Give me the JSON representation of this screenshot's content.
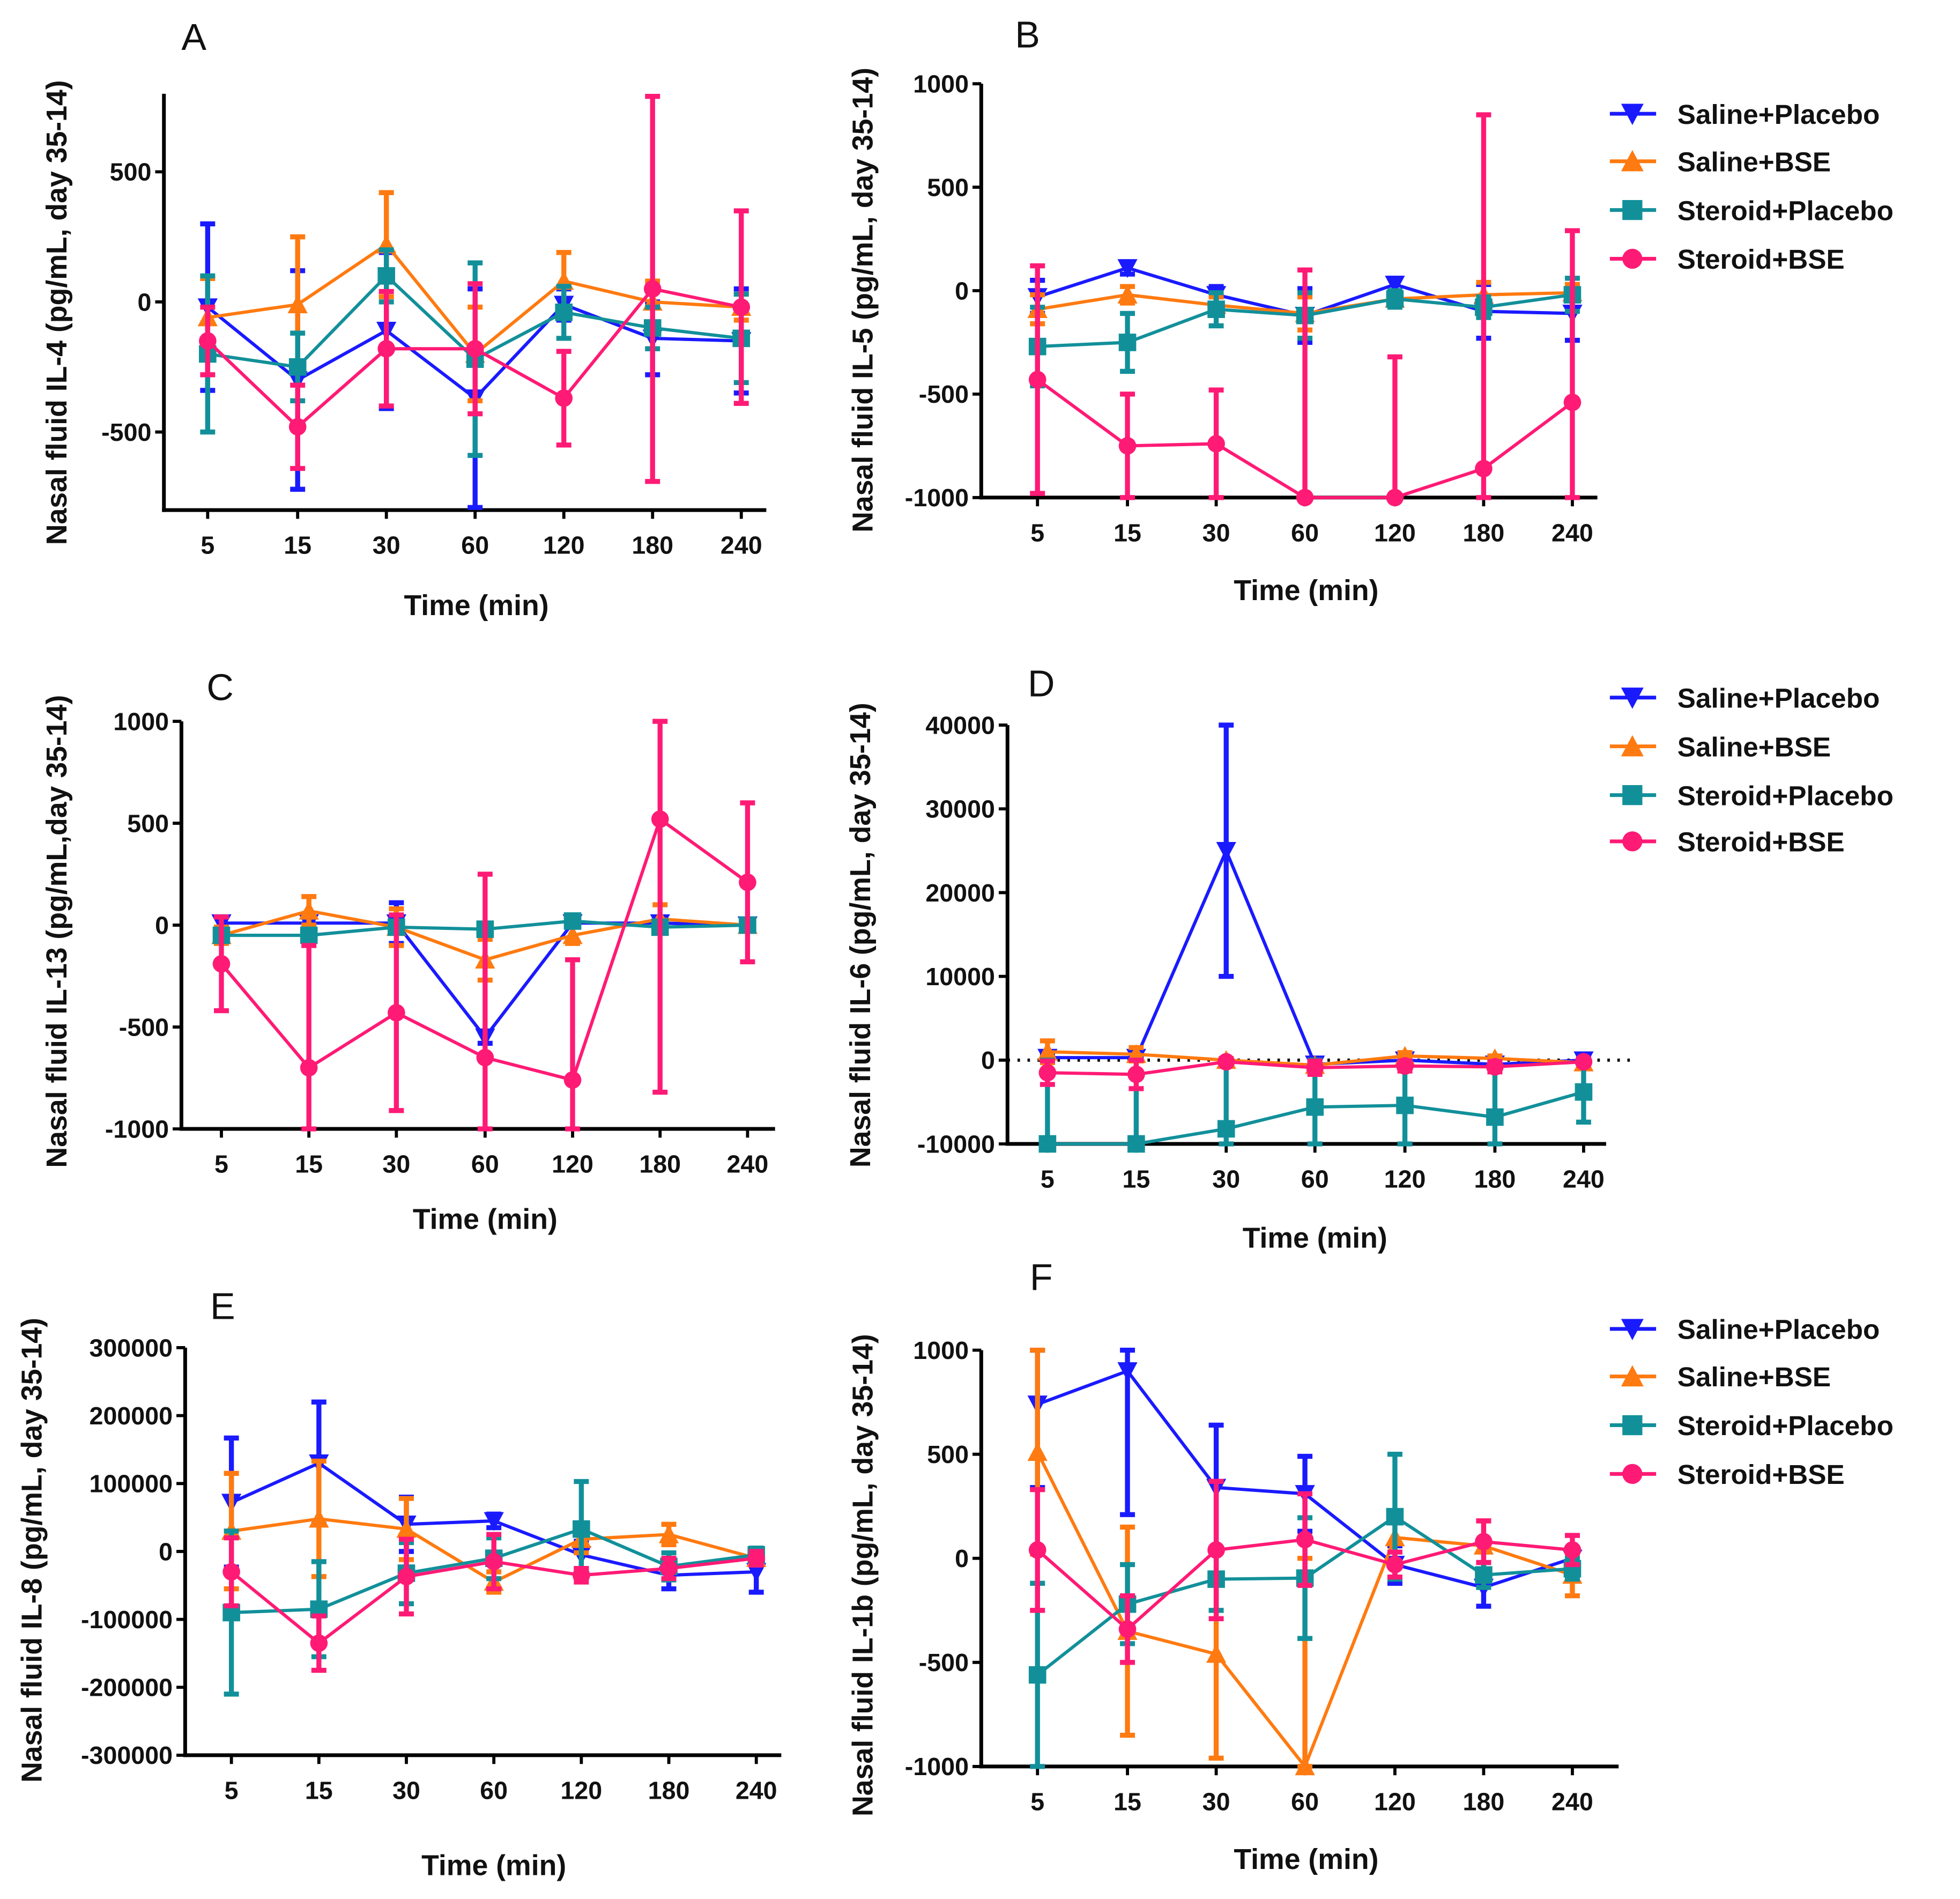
{
  "series_styles": [
    {
      "name": "Saline+Placebo",
      "color": "#1a1aff",
      "marker": "triangle-down"
    },
    {
      "name": "Saline+BSE",
      "color": "#ff7a10",
      "marker": "triangle-up"
    },
    {
      "name": "Steroid+Placebo",
      "color": "#12909a",
      "marker": "square"
    },
    {
      "name": "Steroid+BSE",
      "color": "#ff1a75",
      "marker": "circle"
    }
  ],
  "chart_data": [
    {
      "panel": "A",
      "type": "line",
      "xlabel": "Time (min)",
      "ylabel": "Nasal fluid IL-4 (pg/mL, day 35-14)",
      "categories": [
        "5",
        "15",
        "30",
        "60",
        "120",
        "180",
        "240"
      ],
      "ylim": [
        -800,
        800
      ],
      "yticks": [
        -500,
        0,
        500
      ],
      "legend": false,
      "series": [
        {
          "name": "Saline+Placebo",
          "values": [
            -20,
            -300,
            -110,
            -370,
            -10,
            -140,
            -150
          ],
          "error": [
            320,
            420,
            300,
            420,
            60,
            140,
            200
          ]
        },
        {
          "name": "Saline+BSE",
          "values": [
            -60,
            -10,
            220,
            -200,
            80,
            0,
            -20
          ],
          "error": [
            150,
            260,
            200,
            180,
            110,
            80,
            50
          ]
        },
        {
          "name": "Steroid+Placebo",
          "values": [
            -200,
            -250,
            100,
            -220,
            -40,
            -100,
            -140
          ],
          "error": [
            300,
            130,
            100,
            370,
            100,
            80,
            170
          ]
        },
        {
          "name": "Steroid+BSE",
          "values": [
            -150,
            -480,
            -180,
            -180,
            -370,
            50,
            -20
          ],
          "error": [
            130,
            160,
            220,
            250,
            180,
            740,
            370
          ]
        }
      ]
    },
    {
      "panel": "B",
      "type": "line",
      "xlabel": "Time (min)",
      "ylabel": "Nasal fluid IL-5 (pg/mL, day 35-14)",
      "categories": [
        "5",
        "15",
        "30",
        "60",
        "120",
        "180",
        "240"
      ],
      "ylim": [
        -1000,
        1000
      ],
      "yticks": [
        -1000,
        -500,
        0,
        500,
        1000
      ],
      "legend": "right",
      "series": [
        {
          "name": "Saline+Placebo",
          "values": [
            -30,
            110,
            -20,
            -120,
            30,
            -100,
            -110
          ],
          "error": [
            80,
            30,
            40,
            130,
            30,
            130,
            130
          ]
        },
        {
          "name": "Saline+BSE",
          "values": [
            -90,
            -20,
            -70,
            -110,
            -40,
            -20,
            -10
          ],
          "error": [
            70,
            40,
            40,
            80,
            30,
            60,
            40
          ]
        },
        {
          "name": "Steroid+Placebo",
          "values": [
            -270,
            -250,
            -90,
            -120,
            -40,
            -80,
            -20
          ],
          "error": [
            190,
            140,
            80,
            110,
            40,
            50,
            80
          ]
        },
        {
          "name": "Steroid+BSE",
          "values": [
            -430,
            -750,
            -740,
            -1000,
            -1000,
            -860,
            -540
          ],
          "error": [
            550,
            250,
            260,
            1100,
            680,
            1710,
            830
          ]
        }
      ]
    },
    {
      "panel": "C",
      "type": "line",
      "xlabel": "Time (min)",
      "ylabel": "Nasal fluid IL-13 (pg/mL,day 35-14)",
      "categories": [
        "5",
        "15",
        "30",
        "60",
        "120",
        "180",
        "240"
      ],
      "ylim": [
        -1000,
        1000
      ],
      "yticks": [
        -1000,
        -500,
        0,
        500,
        1000
      ],
      "legend": false,
      "series": [
        {
          "name": "Saline+Placebo",
          "values": [
            10,
            10,
            10,
            -550,
            10,
            10,
            0
          ],
          "error": [
            30,
            30,
            100,
            30,
            20,
            10,
            10
          ]
        },
        {
          "name": "Saline+BSE",
          "values": [
            -50,
            70,
            -10,
            -170,
            -50,
            30,
            0
          ],
          "error": [
            40,
            70,
            90,
            100,
            40,
            70,
            20
          ]
        },
        {
          "name": "Steroid+Placebo",
          "values": [
            -50,
            -50,
            -10,
            -20,
            20,
            -10,
            0
          ],
          "error": [
            30,
            30,
            30,
            30,
            20,
            20,
            10
          ]
        },
        {
          "name": "Steroid+BSE",
          "values": [
            -190,
            -700,
            -430,
            -650,
            -760,
            520,
            210
          ],
          "error": [
            230,
            600,
            480,
            900,
            590,
            1340,
            390
          ]
        }
      ]
    },
    {
      "panel": "D",
      "type": "line",
      "xlabel": "Time (min)",
      "ylabel": "Nasal fluid IL-6 (pg/mL, day 35-14)",
      "categories": [
        "5",
        "15",
        "30",
        "60",
        "120",
        "180",
        "240"
      ],
      "ylim": [
        -10000,
        40000
      ],
      "yticks": [
        -10000,
        0,
        10000,
        20000,
        30000,
        40000
      ],
      "legend": "right",
      "zero_line": "dotted",
      "series": [
        {
          "name": "Saline+Placebo",
          "values": [
            300,
            300,
            25000,
            -500,
            0,
            -500,
            0
          ],
          "error": [
            300,
            300,
            15000,
            200,
            200,
            200,
            300
          ]
        },
        {
          "name": "Saline+BSE",
          "values": [
            1000,
            700,
            0,
            -600,
            500,
            200,
            -300
          ],
          "error": [
            1300,
            800,
            200,
            400,
            400,
            300,
            200
          ]
        },
        {
          "name": "Steroid+Placebo",
          "values": [
            -10000,
            -10000,
            -8200,
            -5600,
            -5400,
            -6800,
            -3800
          ],
          "error": [
            10000,
            10000,
            8000,
            5600,
            5000,
            6600,
            3600
          ]
        },
        {
          "name": "Steroid+BSE",
          "values": [
            -1500,
            -1700,
            -200,
            -900,
            -700,
            -800,
            -200
          ],
          "error": [
            1400,
            1700,
            200,
            800,
            600,
            600,
            200
          ]
        }
      ]
    },
    {
      "panel": "E",
      "type": "line",
      "xlabel": "Time (min)",
      "ylabel": "Nasal fluid IL-8 (pg/mL, day 35-14)",
      "categories": [
        "5",
        "15",
        "30",
        "60",
        "120",
        "180",
        "240"
      ],
      "ylim": [
        -300000,
        300000
      ],
      "yticks": [
        -300000,
        -200000,
        -100000,
        0,
        100000,
        200000,
        300000
      ],
      "legend": false,
      "series": [
        {
          "name": "Saline+Placebo",
          "values": [
            72000,
            130000,
            40000,
            45000,
            -5000,
            -35000,
            -30000
          ],
          "error": [
            95000,
            90000,
            40000,
            10000,
            20000,
            20000,
            30000
          ]
        },
        {
          "name": "Saline+BSE",
          "values": [
            30000,
            48000,
            33000,
            -45000,
            18000,
            25000,
            -10000
          ],
          "error": [
            85000,
            85000,
            45000,
            15000,
            20000,
            15000,
            10000
          ]
        },
        {
          "name": "Steroid+Placebo",
          "values": [
            -90000,
            -85000,
            -32000,
            -10000,
            33000,
            -22000,
            -5000
          ],
          "error": [
            120000,
            70000,
            45000,
            30000,
            70000,
            20000,
            10000
          ]
        },
        {
          "name": "Steroid+BSE",
          "values": [
            -30000,
            -135000,
            -37000,
            -15000,
            -35000,
            -25000,
            -10000
          ],
          "error": [
            50000,
            40000,
            55000,
            40000,
            10000,
            15000,
            10000
          ]
        }
      ]
    },
    {
      "panel": "F",
      "type": "line",
      "xlabel": "Time (min)",
      "ylabel": "Nasal fluid IL-1b (pg/mL, day 35-14)",
      "categories": [
        "5",
        "15",
        "30",
        "60",
        "120",
        "180",
        "240"
      ],
      "ylim": [
        -1000,
        1000
      ],
      "yticks": [
        -1000,
        -500,
        0,
        500,
        1000
      ],
      "legend": "right",
      "series": [
        {
          "name": "Saline+Placebo",
          "values": [
            740,
            900,
            340,
            310,
            -30,
            -140,
            0
          ],
          "error": [
            400,
            690,
            300,
            180,
            90,
            90,
            50
          ]
        },
        {
          "name": "Saline+BSE",
          "values": [
            510,
            -350,
            -460,
            -1000,
            100,
            60,
            -80
          ],
          "error": [
            490,
            500,
            500,
            1000,
            120,
            120,
            100
          ]
        },
        {
          "name": "Steroid+Placebo",
          "values": [
            -560,
            -220,
            -100,
            -95,
            200,
            -80,
            -50
          ],
          "error": [
            440,
            190,
            150,
            290,
            300,
            60,
            50
          ]
        },
        {
          "name": "Steroid+BSE",
          "values": [
            40,
            -340,
            40,
            90,
            -30,
            80,
            40
          ],
          "error": [
            290,
            160,
            330,
            220,
            60,
            100,
            70
          ]
        }
      ]
    }
  ]
}
